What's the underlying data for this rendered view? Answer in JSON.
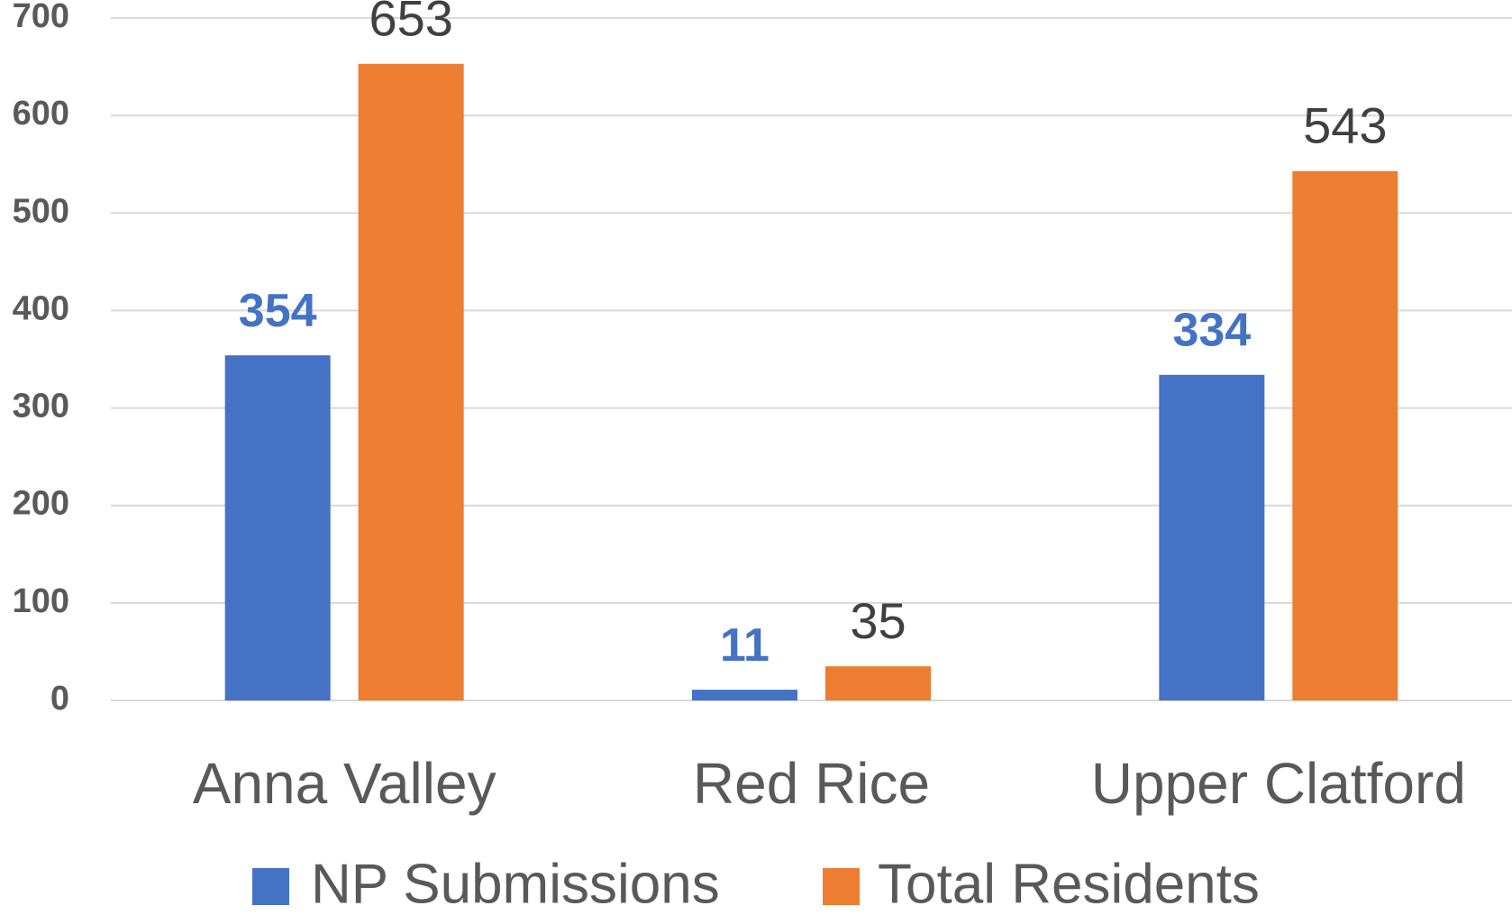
{
  "chart_data": {
    "type": "bar",
    "categories": [
      "Anna Valley",
      "Red Rice",
      "Upper Clatford"
    ],
    "series": [
      {
        "name": "NP Submissions",
        "color": "#4472c4",
        "values": [
          354,
          11,
          334
        ]
      },
      {
        "name": "Total Residents",
        "color": "#ed7d31",
        "values": [
          653,
          35,
          543
        ]
      }
    ],
    "ylim": [
      0,
      700
    ],
    "yticks": [
      0,
      100,
      200,
      300,
      400,
      500,
      600,
      700
    ],
    "grid": true,
    "legend": "bottom"
  }
}
